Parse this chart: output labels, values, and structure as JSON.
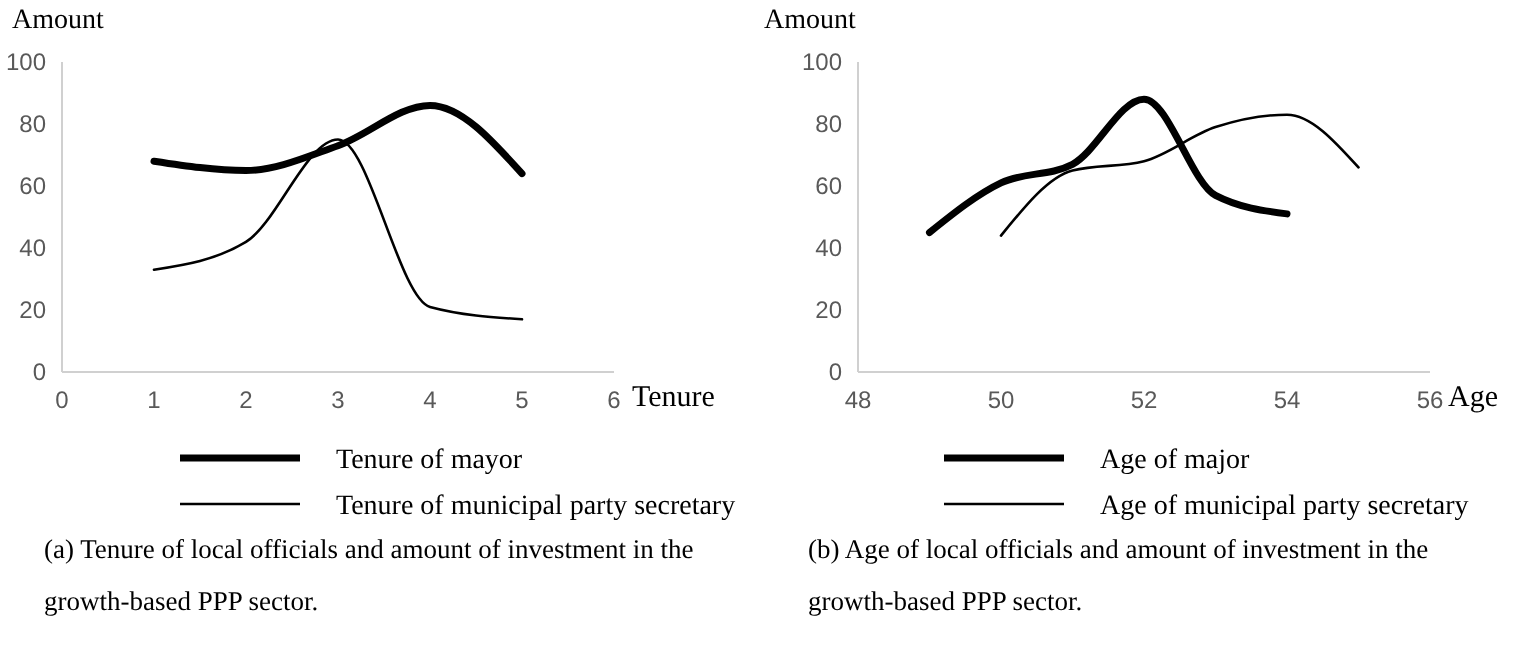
{
  "chart_data": [
    {
      "type": "line",
      "ylabel": "Amount",
      "xlabel": "Tenure",
      "xlim": [
        0,
        6
      ],
      "xticks": [
        0,
        1,
        2,
        3,
        4,
        5,
        6
      ],
      "ylim": [
        0,
        100
      ],
      "yticks": [
        0,
        20,
        40,
        60,
        80,
        100
      ],
      "legend": "bottom",
      "grid": false,
      "marker": "none",
      "line_style": "solid",
      "annotations": [
        "(a) Tenure of local officials and amount of investment in the growth-based PPP sector."
      ],
      "series": [
        {
          "name": "Tenure of mayor",
          "color": "#000000",
          "x": [
            1,
            2,
            3,
            4,
            5
          ],
          "values": [
            68,
            65,
            73,
            86,
            64
          ]
        },
        {
          "name": "Tenure of municipal party secretary",
          "color": "#000000",
          "x": [
            1,
            2,
            3,
            4,
            5
          ],
          "values": [
            33,
            42,
            75,
            21,
            17
          ]
        }
      ]
    },
    {
      "type": "line",
      "ylabel": "Amount",
      "xlabel": "Age",
      "xlim": [
        48,
        56
      ],
      "xticks": [
        48,
        50,
        52,
        54,
        56
      ],
      "ylim": [
        0,
        100
      ],
      "yticks": [
        0,
        20,
        40,
        60,
        80,
        100
      ],
      "legend": "bottom",
      "grid": false,
      "marker": "none",
      "line_style": "solid",
      "annotations": [
        "(b) Age of local officials and amount of investment in the growth-based PPP sector."
      ],
      "series": [
        {
          "name": "Age of major",
          "color": "#000000",
          "x": [
            49,
            50,
            51,
            52,
            53,
            54
          ],
          "values": [
            45,
            61,
            67,
            88,
            57,
            51
          ]
        },
        {
          "name": "Age of municipal party secretary",
          "color": "#000000",
          "x": [
            50,
            51,
            52,
            53,
            54,
            55
          ],
          "values": [
            44,
            65,
            68,
            79,
            83,
            66
          ]
        }
      ]
    }
  ]
}
